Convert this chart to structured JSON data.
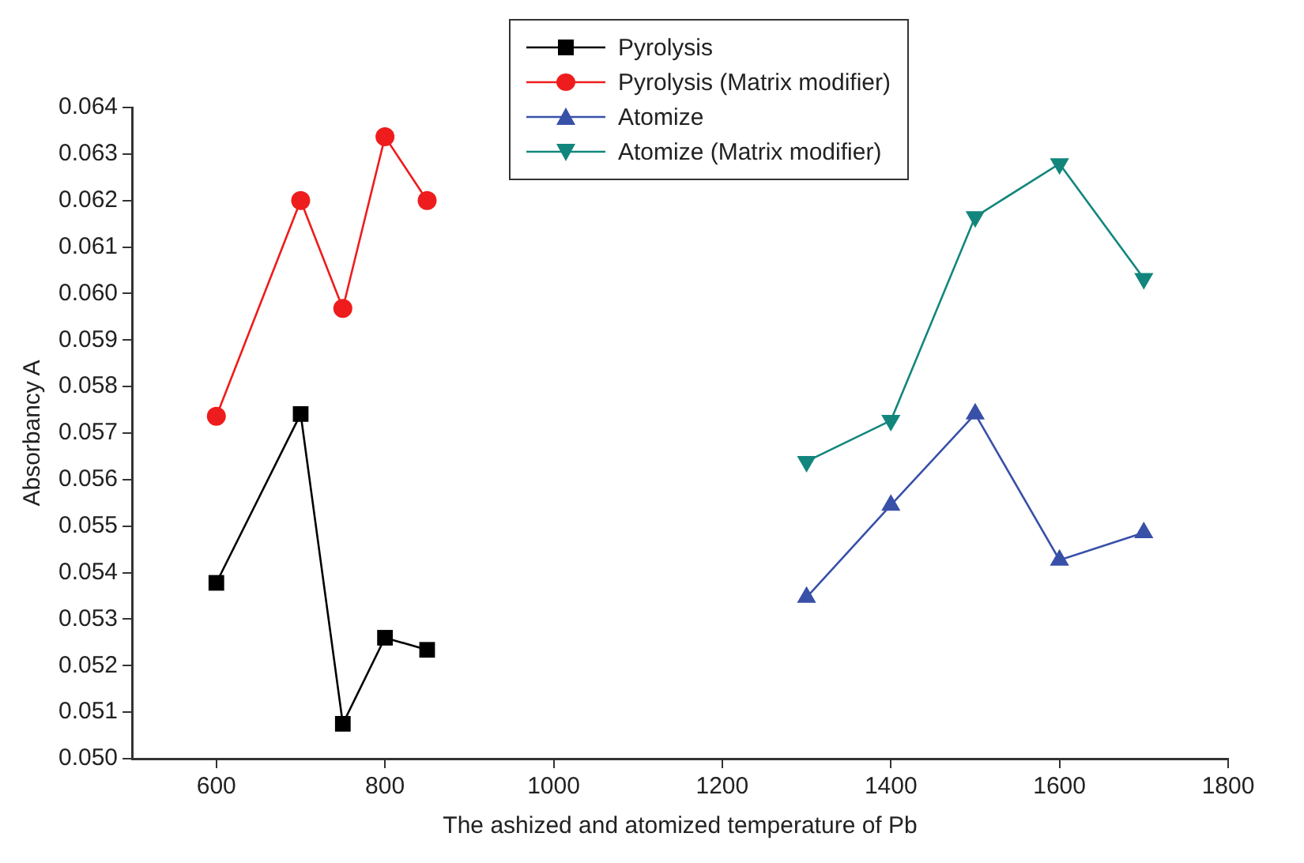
{
  "chart_data": {
    "type": "line",
    "xlabel": "The ashized and atomized temperature of Pb",
    "ylabel": "Absorbancy A",
    "xlim": [
      500,
      1800
    ],
    "xticks": [
      600,
      800,
      1000,
      1200,
      1400,
      1600,
      1800
    ],
    "ylim": [
      0.05,
      0.064
    ],
    "yticks": [
      {
        "value": 0.05,
        "label": "0.050"
      },
      0.051,
      0.052,
      0.053,
      0.054,
      0.055,
      0.056,
      0.057,
      0.058,
      0.059,
      {
        "value": 0.06,
        "label": "0.060"
      },
      0.061,
      0.062,
      0.063,
      0.064
    ],
    "grid": false,
    "legend": "top",
    "line_style": "solid",
    "series": [
      {
        "name": "Pyrolysis",
        "color": "#000000",
        "marker": "square",
        "x": [
          600,
          700,
          750,
          800,
          850
        ],
        "values": [
          0.05378,
          0.05741,
          0.05075,
          0.0526,
          0.05234
        ]
      },
      {
        "name": "Pyrolysis (Matrix modifier)",
        "color": "#ee1c1c",
        "marker": "circle",
        "x": [
          600,
          700,
          750,
          800,
          850
        ],
        "values": [
          0.05736,
          0.062,
          0.05968,
          0.06337,
          0.062
        ]
      },
      {
        "name": "Atomize",
        "color": "#3850a8",
        "marker": "triangle",
        "x": [
          1300,
          1400,
          1500,
          1600,
          1700
        ],
        "values": [
          0.05347,
          0.05545,
          0.05741,
          0.05427,
          0.05486
        ]
      },
      {
        "name": "Atomize (Matrix modifier)",
        "color": "#12867c",
        "marker": "triangle-down",
        "x": [
          1300,
          1400,
          1500,
          1600,
          1700
        ],
        "values": [
          0.05639,
          0.05727,
          0.06165,
          0.06279,
          0.06032
        ]
      }
    ]
  }
}
